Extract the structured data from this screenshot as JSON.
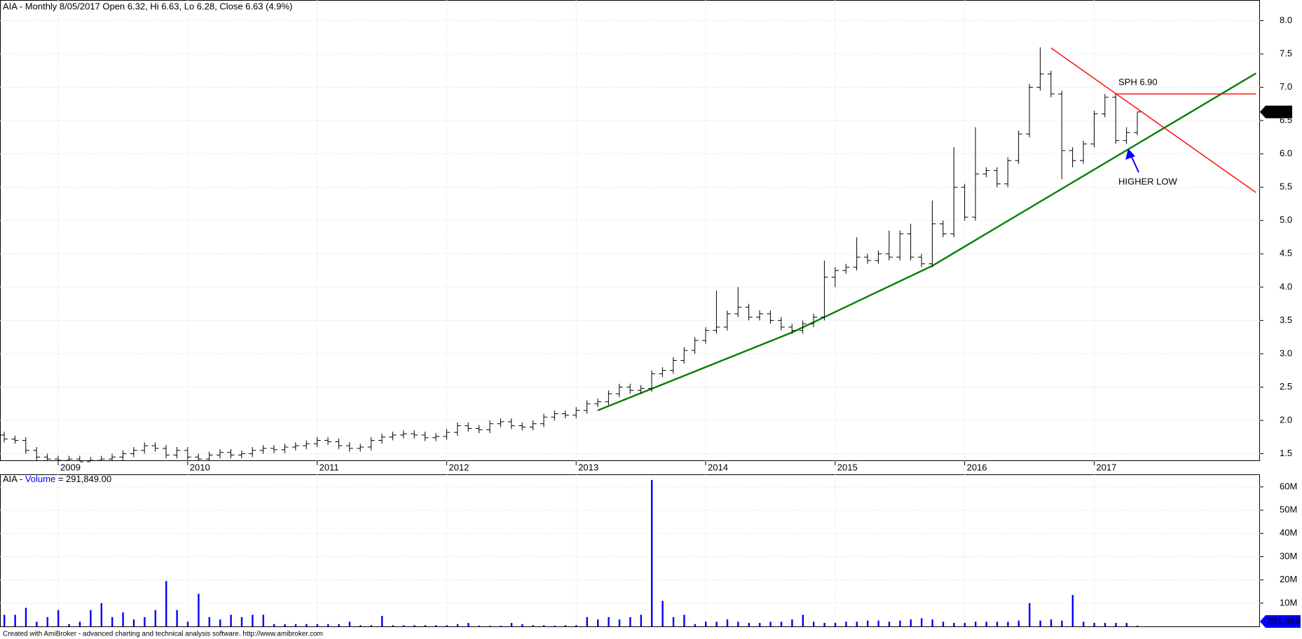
{
  "chart_data": {
    "type": "ohlc",
    "title": "AIA - Monthly 8/05/2017 Open 6.32, Hi 6.63, Lo 6.28, Close 6.63 (4.9%)",
    "x": [
      "2008-08",
      "2008-09",
      "2008-10",
      "2008-11",
      "2008-12",
      "2009-01",
      "2009-02",
      "2009-03",
      "2009-04",
      "2009-05",
      "2009-06",
      "2009-07",
      "2009-08",
      "2009-09",
      "2009-10",
      "2009-11",
      "2009-12",
      "2010-01",
      "2010-02",
      "2010-03",
      "2010-04",
      "2010-05",
      "2010-06",
      "2010-07",
      "2010-08",
      "2010-09",
      "2010-10",
      "2010-11",
      "2010-12",
      "2011-01",
      "2011-02",
      "2011-03",
      "2011-04",
      "2011-05",
      "2011-06",
      "2011-07",
      "2011-08",
      "2011-09",
      "2011-10",
      "2011-11",
      "2011-12",
      "2012-01",
      "2012-02",
      "2012-03",
      "2012-04",
      "2012-05",
      "2012-06",
      "2012-07",
      "2012-08",
      "2012-09",
      "2012-10",
      "2012-11",
      "2012-12",
      "2013-01",
      "2013-02",
      "2013-03",
      "2013-04",
      "2013-05",
      "2013-06",
      "2013-07",
      "2013-08",
      "2013-09",
      "2013-10",
      "2013-11",
      "2013-12",
      "2014-01",
      "2014-02",
      "2014-03",
      "2014-04",
      "2014-05",
      "2014-06",
      "2014-07",
      "2014-08",
      "2014-09",
      "2014-10",
      "2014-11",
      "2014-12",
      "2015-01",
      "2015-02",
      "2015-03",
      "2015-04",
      "2015-05",
      "2015-06",
      "2015-07",
      "2015-08",
      "2015-09",
      "2015-10",
      "2015-11",
      "2015-12",
      "2016-01",
      "2016-02",
      "2016-03",
      "2016-04",
      "2016-05",
      "2016-06",
      "2016-07",
      "2016-08",
      "2016-09",
      "2016-10",
      "2016-11",
      "2016-12",
      "2017-01",
      "2017-02",
      "2017-03",
      "2017-04",
      "2017-05"
    ],
    "open": [
      1.78,
      1.72,
      1.7,
      1.55,
      1.45,
      1.42,
      1.4,
      1.42,
      1.38,
      1.4,
      1.42,
      1.45,
      1.5,
      1.55,
      1.62,
      1.58,
      1.48,
      1.55,
      1.45,
      1.42,
      1.48,
      1.52,
      1.48,
      1.5,
      1.55,
      1.58,
      1.56,
      1.6,
      1.62,
      1.65,
      1.7,
      1.68,
      1.62,
      1.58,
      1.6,
      1.7,
      1.75,
      1.78,
      1.8,
      1.78,
      1.74,
      1.76,
      1.82,
      1.92,
      1.88,
      1.86,
      1.95,
      1.98,
      1.92,
      1.9,
      1.95,
      2.05,
      2.1,
      2.08,
      2.15,
      2.25,
      2.28,
      2.4,
      2.5,
      2.45,
      2.48,
      2.7,
      2.75,
      2.9,
      3.05,
      3.2,
      3.35,
      3.4,
      3.6,
      3.7,
      3.55,
      3.6,
      3.5,
      3.4,
      3.35,
      3.45,
      3.55,
      4.15,
      4.25,
      4.3,
      4.45,
      4.4,
      4.5,
      4.45,
      4.8,
      4.45,
      4.35,
      4.95,
      4.8,
      5.5,
      5.05,
      5.7,
      5.75,
      5.55,
      5.9,
      6.3,
      7.0,
      7.2,
      6.9,
      6.05,
      5.9,
      6.15,
      6.6,
      6.85,
      6.2,
      6.32
    ],
    "high": [
      1.83,
      1.77,
      1.75,
      1.6,
      1.5,
      1.47,
      1.47,
      1.47,
      1.45,
      1.47,
      1.5,
      1.55,
      1.6,
      1.67,
      1.67,
      1.63,
      1.6,
      1.6,
      1.5,
      1.53,
      1.57,
      1.57,
      1.55,
      1.6,
      1.63,
      1.63,
      1.65,
      1.67,
      1.7,
      1.75,
      1.75,
      1.73,
      1.67,
      1.65,
      1.75,
      1.8,
      1.83,
      1.85,
      1.85,
      1.83,
      1.81,
      1.87,
      1.97,
      1.97,
      1.93,
      2.0,
      2.03,
      2.03,
      1.97,
      2.0,
      2.1,
      2.15,
      2.15,
      2.2,
      2.3,
      2.33,
      2.45,
      2.55,
      2.55,
      2.53,
      2.75,
      2.8,
      2.95,
      3.1,
      3.25,
      3.4,
      3.95,
      3.65,
      4.0,
      3.75,
      3.65,
      3.65,
      3.55,
      3.45,
      3.5,
      3.6,
      4.4,
      4.3,
      4.35,
      4.75,
      4.5,
      4.55,
      4.85,
      4.85,
      4.95,
      4.5,
      5.3,
      5.0,
      6.1,
      5.55,
      6.4,
      5.8,
      5.8,
      5.95,
      6.35,
      7.05,
      7.6,
      7.25,
      6.95,
      6.1,
      6.2,
      6.65,
      6.9,
      6.9,
      6.4,
      6.63
    ],
    "low": [
      1.67,
      1.65,
      1.5,
      1.4,
      1.39,
      1.39,
      1.39,
      1.39,
      1.39,
      1.39,
      1.39,
      1.4,
      1.45,
      1.5,
      1.53,
      1.43,
      1.43,
      1.4,
      1.39,
      1.39,
      1.43,
      1.43,
      1.43,
      1.45,
      1.5,
      1.51,
      1.51,
      1.55,
      1.57,
      1.6,
      1.63,
      1.57,
      1.53,
      1.53,
      1.55,
      1.65,
      1.7,
      1.73,
      1.73,
      1.69,
      1.69,
      1.71,
      1.77,
      1.83,
      1.81,
      1.81,
      1.9,
      1.87,
      1.85,
      1.85,
      1.9,
      2.0,
      2.03,
      2.03,
      2.1,
      2.2,
      2.23,
      2.35,
      2.4,
      2.4,
      2.43,
      2.65,
      2.7,
      2.85,
      3.0,
      3.15,
      3.3,
      3.35,
      3.55,
      3.5,
      3.5,
      3.45,
      3.35,
      3.3,
      3.3,
      3.4,
      3.5,
      4.0,
      4.2,
      4.25,
      4.35,
      4.35,
      4.4,
      4.4,
      4.4,
      4.3,
      4.3,
      4.75,
      4.75,
      5.0,
      5.0,
      5.65,
      5.5,
      5.5,
      5.85,
      6.25,
      6.95,
      6.85,
      5.62,
      5.8,
      5.85,
      6.1,
      6.55,
      6.15,
      6.15,
      6.28
    ],
    "close": [
      1.72,
      1.7,
      1.55,
      1.45,
      1.42,
      1.4,
      1.42,
      1.38,
      1.4,
      1.42,
      1.45,
      1.5,
      1.55,
      1.62,
      1.58,
      1.48,
      1.55,
      1.45,
      1.42,
      1.48,
      1.52,
      1.48,
      1.5,
      1.55,
      1.58,
      1.56,
      1.6,
      1.62,
      1.65,
      1.7,
      1.68,
      1.62,
      1.58,
      1.6,
      1.7,
      1.75,
      1.78,
      1.8,
      1.78,
      1.74,
      1.76,
      1.82,
      1.92,
      1.88,
      1.86,
      1.95,
      1.98,
      1.92,
      1.9,
      1.95,
      2.05,
      2.1,
      2.08,
      2.15,
      2.25,
      2.28,
      2.4,
      2.5,
      2.45,
      2.48,
      2.7,
      2.75,
      2.9,
      3.05,
      3.2,
      3.35,
      3.4,
      3.6,
      3.7,
      3.55,
      3.6,
      3.5,
      3.4,
      3.35,
      3.45,
      3.55,
      4.15,
      4.25,
      4.3,
      4.45,
      4.4,
      4.5,
      4.45,
      4.8,
      4.45,
      4.35,
      4.95,
      4.8,
      5.5,
      5.05,
      5.7,
      5.75,
      5.55,
      5.9,
      6.3,
      7.0,
      7.2,
      6.9,
      6.05,
      5.9,
      6.15,
      6.6,
      6.85,
      6.2,
      6.32,
      6.63
    ],
    "color": "#000000",
    "ylim": [
      1.39,
      8.31
    ],
    "yticks": [
      1.5,
      {
        "value": 2,
        "label": "2.0"
      },
      2.5,
      {
        "value": 3,
        "label": "3.0"
      },
      3.5,
      {
        "value": 4,
        "label": "4.0"
      },
      4.5,
      {
        "value": 5,
        "label": "5.0"
      },
      5.5,
      {
        "value": 6,
        "label": "6.0"
      },
      6.5,
      {
        "value": 7,
        "label": "7.0"
      },
      7.5,
      {
        "value": 8,
        "label": "8.0"
      }
    ],
    "xticks": [
      "2009",
      "2010",
      "2011",
      "2012",
      "2013",
      "2014",
      "2015",
      "2016",
      "2017"
    ],
    "grid": true,
    "trendlines": [
      {
        "color": "#008000",
        "x": [
          "2013-03",
          "2014-09",
          "2015-10",
          "2018-04"
        ],
        "y": [
          2.15,
          3.32,
          4.32,
          7.21
        ]
      },
      {
        "color": "#ff0000",
        "x": [
          "2016-09",
          "2018-04"
        ],
        "y": [
          7.59,
          5.42
        ]
      },
      {
        "color": "#ff0000",
        "x": [
          "2017-03",
          "2018-04"
        ],
        "y": [
          6.9,
          6.9
        ]
      }
    ],
    "annotations": [
      "SPH 6.90",
      "HIGHER LOW"
    ],
    "volume": {
      "title_prefix": "AIA -",
      "name": "Volume",
      "title_suffix": "= 291,849.00",
      "color": "#0000ff",
      "values": [
        5000000,
        5000000,
        8000000,
        2000000,
        4000000,
        7000000,
        1000000,
        2000000,
        7000000,
        10000000,
        4000000,
        6000000,
        3000000,
        4000000,
        7000000,
        19500000,
        7000000,
        2000000,
        14000000,
        4000000,
        3000000,
        5000000,
        4000000,
        5000000,
        5000000,
        1000000,
        1000000,
        1000000,
        1000000,
        1000000,
        1000000,
        1000000,
        2000000,
        500000,
        500000,
        4500000,
        500000,
        500000,
        500000,
        500000,
        500000,
        500000,
        1000000,
        1500000,
        300000,
        300000,
        300000,
        1500000,
        1000000,
        500000,
        500000,
        300000,
        500000,
        500000,
        4000000,
        3000000,
        4000000,
        3000000,
        4000000,
        5000000,
        63000000,
        11000000,
        4000000,
        5000000,
        1000000,
        2000000,
        2000000,
        3000000,
        2000000,
        1500000,
        1500000,
        2000000,
        2000000,
        3000000,
        5000000,
        2000000,
        1500000,
        1500000,
        2000000,
        2000000,
        2500000,
        2500000,
        2000000,
        2500000,
        3000000,
        3500000,
        3000000,
        2000000,
        1500000,
        1500000,
        2000000,
        2000000,
        2000000,
        2000000,
        2500000,
        10000000,
        2500000,
        3000000,
        2500000,
        13500000,
        2000000,
        1500000,
        1500000,
        1500000,
        1500000,
        291849
      ],
      "last_label": "291,849",
      "ylim": [
        0,
        65400000
      ],
      "yticks": [
        {
          "value": 10000000,
          "label": "10M"
        },
        {
          "value": 20000000,
          "label": "20M"
        },
        {
          "value": 30000000,
          "label": "30M"
        },
        {
          "value": 40000000,
          "label": "40M"
        },
        {
          "value": 50000000,
          "label": "50M"
        },
        {
          "value": 60000000,
          "label": "60M"
        }
      ]
    },
    "footer": "Created with AmiBroker - advanced charting and technical analysis software. http://www.amibroker.com"
  }
}
